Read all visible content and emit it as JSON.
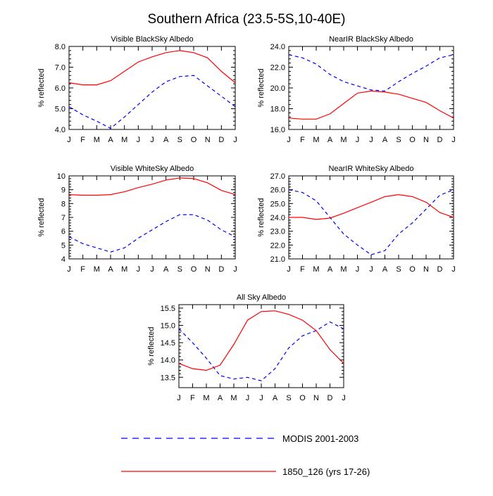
{
  "title": "Southern Africa (23.5-5S,10-40E)",
  "colors": {
    "model": "#ff0000",
    "modis": "#0000ff",
    "axis": "#000000"
  },
  "legend": {
    "modis_label": "MODIS 2001-2003",
    "model_label": "1850_126 (yrs 17-26)"
  },
  "chart_data": [
    {
      "type": "line",
      "title": "Visible BlackSky Albedo",
      "ylabel": "% reflected",
      "ylim": [
        4.0,
        8.0
      ],
      "yticks": [
        "4.0",
        "5.0",
        "6.0",
        "7.0",
        "8.0"
      ],
      "yticks_values": [
        4.0,
        5.0,
        6.0,
        7.0,
        8.0
      ],
      "categories": [
        "J",
        "F",
        "M",
        "A",
        "M",
        "J",
        "J",
        "A",
        "S",
        "O",
        "N",
        "D",
        "J"
      ],
      "series": [
        {
          "name": "MODIS 2001-2003",
          "style": "dashed",
          "values": [
            5.1,
            4.7,
            4.4,
            4.05,
            4.6,
            5.2,
            5.8,
            6.3,
            6.55,
            6.6,
            6.1,
            5.6,
            5.1
          ]
        },
        {
          "name": "1850_126 (yrs 17-26)",
          "style": "solid",
          "values": [
            6.25,
            6.15,
            6.15,
            6.35,
            6.8,
            7.25,
            7.5,
            7.7,
            7.8,
            7.7,
            7.45,
            6.8,
            6.25
          ]
        }
      ]
    },
    {
      "type": "line",
      "title": "NearIR BlackSky Albedo",
      "ylabel": "% reflected",
      "ylim": [
        16.0,
        24.0
      ],
      "yticks": [
        "16.0",
        "18.0",
        "20.0",
        "22.0",
        "24.0"
      ],
      "yticks_values": [
        16.0,
        18.0,
        20.0,
        22.0,
        24.0
      ],
      "categories": [
        "J",
        "F",
        "M",
        "A",
        "M",
        "J",
        "J",
        "A",
        "S",
        "O",
        "N",
        "D",
        "J"
      ],
      "series": [
        {
          "name": "MODIS 2001-2003",
          "style": "dashed",
          "values": [
            23.2,
            22.9,
            22.3,
            21.3,
            20.6,
            20.2,
            19.8,
            19.7,
            20.6,
            21.4,
            22.1,
            22.9,
            23.2
          ]
        },
        {
          "name": "1850_126 (yrs 17-26)",
          "style": "solid",
          "values": [
            17.1,
            17.0,
            17.0,
            17.5,
            18.5,
            19.5,
            19.7,
            19.6,
            19.4,
            19.0,
            18.6,
            17.8,
            17.1
          ]
        }
      ]
    },
    {
      "type": "line",
      "title": "Visible WhiteSky Albedo",
      "ylabel": "% reflected",
      "ylim": [
        4,
        10
      ],
      "yticks": [
        "4",
        "5",
        "6",
        "7",
        "8",
        "9",
        "10"
      ],
      "yticks_values": [
        4,
        5,
        6,
        7,
        8,
        9,
        10
      ],
      "categories": [
        "J",
        "F",
        "M",
        "A",
        "M",
        "J",
        "J",
        "A",
        "S",
        "O",
        "N",
        "D",
        "J"
      ],
      "series": [
        {
          "name": "MODIS 2001-2003",
          "style": "dashed",
          "values": [
            5.6,
            5.1,
            4.8,
            4.5,
            4.8,
            5.5,
            6.1,
            6.7,
            7.2,
            7.2,
            6.8,
            6.1,
            5.6
          ]
        },
        {
          "name": "1850_126 (yrs 17-26)",
          "style": "solid",
          "values": [
            8.65,
            8.6,
            8.6,
            8.65,
            8.85,
            9.15,
            9.4,
            9.7,
            9.85,
            9.8,
            9.5,
            8.95,
            8.65
          ]
        }
      ]
    },
    {
      "type": "line",
      "title": "NearIR WhiteSky Albedo",
      "ylabel": "% reflected",
      "ylim": [
        21.0,
        27.0
      ],
      "yticks": [
        "21.0",
        "22.0",
        "23.0",
        "24.0",
        "25.0",
        "26.0",
        "27.0"
      ],
      "yticks_values": [
        21.0,
        22.0,
        23.0,
        24.0,
        25.0,
        26.0,
        27.0
      ],
      "categories": [
        "J",
        "F",
        "M",
        "A",
        "M",
        "J",
        "J",
        "A",
        "S",
        "O",
        "N",
        "D",
        "J"
      ],
      "series": [
        {
          "name": "MODIS 2001-2003",
          "style": "dashed",
          "values": [
            26.0,
            25.8,
            25.2,
            24.0,
            22.8,
            22.0,
            21.3,
            21.6,
            22.8,
            23.6,
            24.6,
            25.6,
            26.0
          ]
        },
        {
          "name": "1850_126 (yrs 17-26)",
          "style": "solid",
          "values": [
            24.0,
            24.0,
            23.85,
            23.95,
            24.3,
            24.7,
            25.1,
            25.5,
            25.65,
            25.5,
            25.1,
            24.35,
            24.0
          ]
        }
      ]
    },
    {
      "type": "line",
      "title": "All Sky Albedo",
      "ylabel": "% reflected",
      "ylim": [
        13.2,
        15.6
      ],
      "yticks": [
        "13.5",
        "14.0",
        "14.5",
        "15.0",
        "15.5"
      ],
      "yticks_values": [
        13.5,
        14.0,
        14.5,
        15.0,
        15.5
      ],
      "categories": [
        "J",
        "F",
        "M",
        "A",
        "M",
        "J",
        "J",
        "A",
        "S",
        "O",
        "N",
        "D",
        "J"
      ],
      "series": [
        {
          "name": "MODIS 2001-2003",
          "style": "dashed",
          "values": [
            14.9,
            14.5,
            14.05,
            13.55,
            13.45,
            13.5,
            13.4,
            13.75,
            14.35,
            14.7,
            14.85,
            15.1,
            14.9
          ]
        },
        {
          "name": "1850_126 (yrs 17-26)",
          "style": "solid",
          "values": [
            13.9,
            13.75,
            13.7,
            13.85,
            14.45,
            15.15,
            15.4,
            15.42,
            15.32,
            15.15,
            14.85,
            14.3,
            13.9
          ]
        }
      ]
    }
  ]
}
